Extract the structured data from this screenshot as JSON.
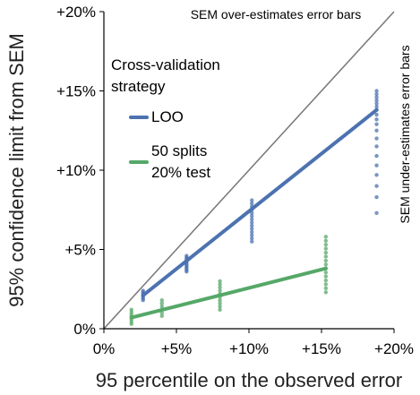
{
  "chart_data": {
    "type": "scatter",
    "xlabel": "95 percentile on the observed error",
    "ylabel": "95% confidence limit from SEM",
    "xlim": [
      0,
      20
    ],
    "ylim": [
      0,
      20
    ],
    "xticks": [
      {
        "value": 0,
        "label": "0%"
      },
      {
        "value": 5,
        "label": "+5%"
      },
      {
        "value": 10,
        "label": "+10%"
      },
      {
        "value": 15,
        "label": "+15%"
      },
      {
        "value": 20,
        "label": "+20%"
      }
    ],
    "yticks": [
      {
        "value": 0,
        "label": "0%"
      },
      {
        "value": 5,
        "label": "+5%"
      },
      {
        "value": 10,
        "label": "+10%"
      },
      {
        "value": 15,
        "label": "+15%"
      },
      {
        "value": 20,
        "label": "+20%"
      }
    ],
    "identity_line": true,
    "identity_color": "#777777",
    "annotations": {
      "top": "SEM over-estimates error bars",
      "right": "SEM under-estimates error bars"
    },
    "legend_title": "Cross-validation\nstrategy",
    "series": [
      {
        "style": "scatter",
        "color": "#4c72b0",
        "x": [
          2.7,
          2.7,
          2.7,
          2.7,
          2.7,
          2.7,
          2.7,
          5.7,
          5.7,
          5.7,
          5.7,
          5.7,
          5.7,
          5.7,
          5.7,
          5.7,
          5.7,
          5.7,
          10.2,
          10.2,
          10.2,
          10.2,
          10.2,
          10.2,
          10.2,
          10.2,
          10.2,
          10.2,
          10.2,
          10.2,
          10.2,
          10.2,
          18.8,
          18.8,
          18.8,
          18.8,
          18.8,
          18.8,
          18.8,
          18.8,
          18.8,
          18.8,
          18.8,
          18.8,
          18.8,
          18.8,
          18.8,
          18.8,
          18.8,
          18.8,
          18.8
        ],
        "values": [
          1.8,
          1.9,
          2.0,
          2.1,
          2.2,
          2.3,
          2.4,
          3.6,
          3.7,
          3.8,
          3.9,
          4.0,
          4.1,
          4.2,
          4.3,
          4.4,
          4.5,
          4.6,
          5.5,
          5.7,
          5.9,
          6.1,
          6.3,
          6.5,
          6.7,
          6.9,
          7.1,
          7.3,
          7.5,
          7.7,
          7.9,
          8.1,
          7.3,
          8.3,
          9.0,
          9.7,
          10.3,
          10.9,
          11.5,
          12.0,
          12.5,
          12.9,
          13.2,
          13.5,
          13.8,
          14.0,
          14.2,
          14.4,
          14.6,
          14.8,
          15.0
        ]
      },
      {
        "style": "scatter",
        "color": "#55a868",
        "x": [
          1.9,
          1.9,
          1.9,
          1.9,
          1.9,
          1.9,
          1.9,
          4.0,
          4.0,
          4.0,
          4.0,
          4.0,
          4.0,
          8.0,
          8.0,
          8.0,
          8.0,
          8.0,
          8.0,
          8.0,
          8.0,
          8.0,
          8.0,
          15.3,
          15.3,
          15.3,
          15.3,
          15.3,
          15.3,
          15.3,
          15.3,
          15.3,
          15.3,
          15.3,
          15.3,
          15.3,
          15.3,
          15.3
        ],
        "values": [
          0.3,
          0.45,
          0.6,
          0.75,
          0.9,
          1.05,
          1.2,
          0.8,
          1.0,
          1.2,
          1.4,
          1.6,
          1.8,
          1.2,
          1.4,
          1.6,
          1.8,
          2.0,
          2.2,
          2.4,
          2.6,
          2.8,
          3.0,
          2.3,
          2.55,
          2.8,
          3.05,
          3.3,
          3.55,
          3.8,
          4.05,
          4.3,
          4.55,
          4.8,
          5.05,
          5.3,
          5.55,
          5.8
        ]
      },
      {
        "style": "line",
        "name": "LOO",
        "color": "#4c72b0",
        "x": [
          2.7,
          18.8
        ],
        "values": [
          2.1,
          13.8
        ]
      },
      {
        "style": "line",
        "name": "50 splits\n20% test",
        "color": "#55a868",
        "x": [
          1.9,
          15.3
        ],
        "values": [
          0.7,
          3.8
        ]
      }
    ]
  }
}
